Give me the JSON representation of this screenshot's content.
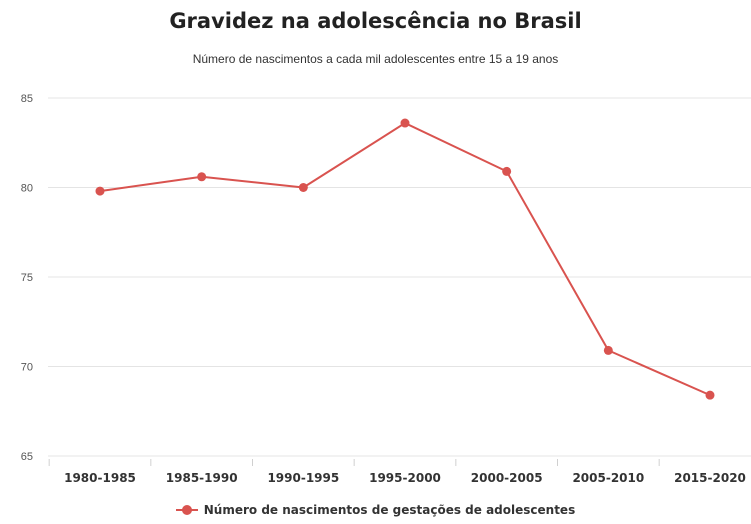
{
  "chart_data": {
    "type": "line",
    "title": "Gravidez na adolescência no Brasil",
    "subtitle": "Número de nascimentos a cada mil adolescentes entre 15 a 19 anos",
    "categories": [
      "1980-1985",
      "1985-1990",
      "1990-1995",
      "1995-2000",
      "2000-2005",
      "2005-2010",
      "2015-2020"
    ],
    "series": [
      {
        "name": "Número de nascimentos de gestações de adolescentes",
        "values": [
          79.8,
          80.6,
          80.0,
          83.6,
          80.9,
          70.9,
          68.4
        ],
        "color": "#d9534f"
      }
    ],
    "y_ticks": [
      65,
      70,
      75,
      80,
      85
    ],
    "ylim": [
      65,
      85
    ],
    "grid": true,
    "legend_position": "bottom-center",
    "xlabel": "",
    "ylabel": ""
  }
}
